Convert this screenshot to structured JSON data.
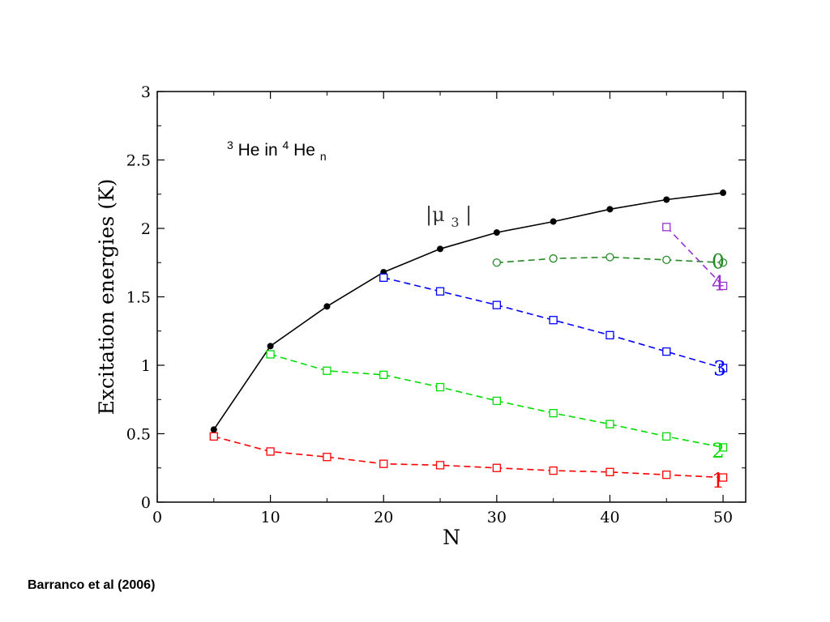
{
  "citation": "Barranco et al (2006)",
  "chart_data": {
    "type": "line",
    "title": "",
    "xlabel": "N",
    "ylabel": "Excitation energies (K)",
    "xlim": [
      0,
      52
    ],
    "ylim": [
      0,
      3
    ],
    "xticks": [
      "0",
      "10",
      "20",
      "30",
      "40",
      "50"
    ],
    "yticks": [
      "0",
      "0.5",
      "1",
      "1.5",
      "2",
      "2.5",
      "3"
    ],
    "grid": false,
    "annotation": {
      "sup1": "3",
      "text1": "He in ",
      "sup2": "4",
      "text2": "He",
      "sub": "n"
    },
    "mu_label": {
      "main": "|μ",
      "sub": "3",
      "close": "|"
    },
    "series": [
      {
        "name": "|μ3|",
        "color": "#000000",
        "dash": "solid",
        "marker": "filled-circle",
        "x": [
          5,
          10,
          15,
          20,
          25,
          30,
          35,
          40,
          45,
          50
        ],
        "y": [
          0.53,
          1.14,
          1.43,
          1.68,
          1.85,
          1.97,
          2.05,
          2.14,
          2.21,
          2.26
        ]
      },
      {
        "name": "0",
        "color": "#228b22",
        "dash": "dashed",
        "marker": "open-circle",
        "x": [
          30,
          35,
          40,
          45,
          50
        ],
        "y": [
          1.75,
          1.78,
          1.79,
          1.77,
          1.75
        ]
      },
      {
        "name": "4",
        "color": "#9932cc",
        "dash": "dashed",
        "marker": "open-square",
        "x": [
          45,
          50
        ],
        "y": [
          2.01,
          1.58
        ]
      },
      {
        "name": "3",
        "color": "#0000ff",
        "dash": "dashed",
        "marker": "open-square",
        "x": [
          20,
          25,
          30,
          35,
          40,
          45,
          50
        ],
        "y": [
          1.64,
          1.54,
          1.44,
          1.33,
          1.22,
          1.1,
          0.98
        ]
      },
      {
        "name": "2",
        "color": "#00dd00",
        "dash": "dashed",
        "marker": "open-square",
        "x": [
          10,
          15,
          20,
          25,
          30,
          35,
          40,
          45,
          50
        ],
        "y": [
          1.08,
          0.96,
          0.93,
          0.84,
          0.74,
          0.65,
          0.57,
          0.48,
          0.4
        ]
      },
      {
        "name": "1",
        "color": "#ff0000",
        "dash": "dashed",
        "marker": "open-square",
        "x": [
          5,
          10,
          15,
          20,
          25,
          30,
          35,
          40,
          45,
          50
        ],
        "y": [
          0.48,
          0.37,
          0.33,
          0.28,
          0.27,
          0.25,
          0.23,
          0.22,
          0.2,
          0.18
        ]
      }
    ]
  }
}
